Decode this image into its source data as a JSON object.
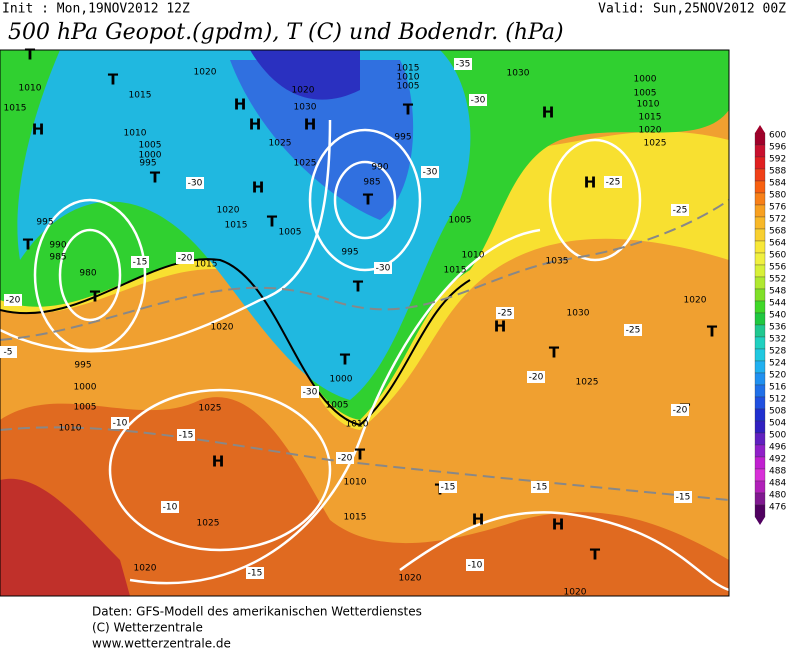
{
  "header": {
    "init": "Init : Mon,19NOV2012 12Z",
    "valid": "Valid: Sun,25NOV2012 00Z",
    "title": "500 hPa Geopot.(gpdm), T (C) und Bodendr. (hPa)"
  },
  "colorbar": {
    "labels": [
      "600",
      "596",
      "592",
      "588",
      "584",
      "580",
      "576",
      "572",
      "568",
      "564",
      "560",
      "556",
      "552",
      "548",
      "544",
      "540",
      "536",
      "532",
      "528",
      "524",
      "520",
      "516",
      "512",
      "508",
      "504",
      "500",
      "496",
      "492",
      "488",
      "484",
      "480",
      "476"
    ]
  },
  "map": {
    "centers": [
      "H",
      "H",
      "H",
      "H",
      "H",
      "H",
      "H",
      "H",
      "H",
      "H",
      "H",
      "T",
      "T",
      "T",
      "T",
      "T",
      "T",
      "T",
      "T",
      "T",
      "T",
      "T",
      "T",
      "T",
      "T",
      "T",
      "T"
    ],
    "isobars": [
      "1020",
      "1010",
      "1015",
      "1015",
      "1020",
      "1030",
      "1025",
      "1025",
      "1010",
      "1005",
      "1000",
      "995",
      "995",
      "990",
      "985",
      "980",
      "1015",
      "1020",
      "995",
      "1000",
      "1005",
      "1010",
      "1025",
      "1025",
      "1020",
      "1015",
      "1010",
      "1005",
      "995",
      "990",
      "985",
      "1005",
      "1010",
      "1015",
      "995",
      "1000",
      "1005",
      "1010",
      "1010",
      "1015",
      "1030",
      "1000",
      "1005",
      "1010",
      "1015",
      "1020",
      "1025",
      "1035",
      "1030",
      "1025",
      "1020",
      "1020",
      "1020",
      "1020",
      "1015",
      "1005"
    ],
    "temperatures": [
      "-35",
      "-30",
      "-30",
      "-30",
      "-30",
      "-30",
      "-25",
      "-25",
      "-25",
      "-25",
      "-20",
      "-20",
      "-20",
      "-20",
      "-20",
      "-15",
      "-15",
      "-15",
      "-15",
      "-15",
      "-15",
      "-10",
      "-10",
      "-10",
      "-5"
    ]
  },
  "footer": {
    "lines": [
      "Daten: GFS-Modell des amerikanischen Wetterdienstes",
      "(C) Wetterzentrale",
      "www.wetterzentrale.de"
    ]
  }
}
